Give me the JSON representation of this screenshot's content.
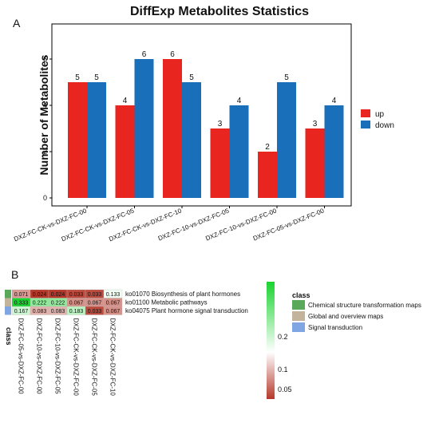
{
  "chart_data": [
    {
      "panel": "A",
      "type": "bar",
      "title": "DiffExp Metabolites Statistics",
      "xlabel": "",
      "ylabel": "Number of Metabolites",
      "ylim": [
        0,
        7
      ],
      "yticks": [
        0,
        2,
        4,
        6
      ],
      "categories": [
        "DXZ-FC-CK-vs-DXZ-FC-00",
        "DXZ-FC-CK-vs-DXZ-FC-05",
        "DXZ-FC-CK-vs-DXZ-FC-10",
        "DXZ-FC-10-vs-DXZ-FC-05",
        "DXZ-FC-10-vs-DXZ-FC-00",
        "DXZ-FC-05-vs-DXZ-FC-00"
      ],
      "series": [
        {
          "name": "up",
          "values": [
            5,
            4,
            6,
            3,
            2,
            3
          ],
          "color": "#e8251f"
        },
        {
          "name": "down",
          "values": [
            5,
            6,
            5,
            4,
            5,
            4
          ],
          "color": "#1a6fba"
        }
      ],
      "legend": {
        "position": "right",
        "items": [
          "up",
          "down"
        ]
      },
      "grid": false
    },
    {
      "panel": "B",
      "type": "heatmap",
      "columns": [
        "DXZ-FC-05-vs-DXZ-FC-00",
        "DXZ-FC-10-vs-DXZ-FC-00",
        "DXZ-FC-10-vs-DXZ-FC-05",
        "DXZ-FC-CK-vs-DXZ-FC-00",
        "DXZ-FC-CK-vs-DXZ-FC-05",
        "DXZ-FC-CK-vs-DXZ-FC-10"
      ],
      "rows": [
        "ko01070 Biosynthesis of plant hormones",
        "ko01100 Metabolic pathways",
        "ko04075 Plant hormone signal transduction"
      ],
      "values": [
        [
          0.071,
          0.024,
          0.024,
          0.033,
          0.033,
          0.133
        ],
        [
          0.333,
          0.222,
          0.222,
          0.067,
          0.067,
          0.067
        ],
        [
          0.167,
          0.083,
          0.083,
          0.183,
          0.033,
          0.067
        ]
      ],
      "cell_labels": [
        [
          "0.071",
          "0.024",
          "0.024",
          "0.033",
          "0.033",
          "0.133"
        ],
        [
          "0.333",
          "0.222",
          "0.222",
          "0.067",
          "0.067",
          "0.067"
        ],
        [
          "0.167",
          "0.083",
          "0.083",
          "0.183",
          "0.033",
          "0.067"
        ]
      ],
      "row_class_label": "class",
      "row_classes": [
        "Chemical structure transformation maps",
        "Global and overview maps",
        "Signal transduction"
      ],
      "colorbar": {
        "ticks": [
          "0.2",
          "0.1",
          "0.05"
        ],
        "min_color": "#b5382a",
        "mid_color": "#ffffff",
        "max_color": "#19d42f"
      },
      "class_legend": {
        "title": "class",
        "items": [
          {
            "label": "Chemical structure transformation maps",
            "color": "#5aa85a"
          },
          {
            "label": "Global and overview maps",
            "color": "#c2b39a"
          },
          {
            "label": "Signal transduction",
            "color": "#7fa6e3"
          }
        ]
      }
    }
  ],
  "panel_labels": {
    "a": "A",
    "b": "B"
  }
}
